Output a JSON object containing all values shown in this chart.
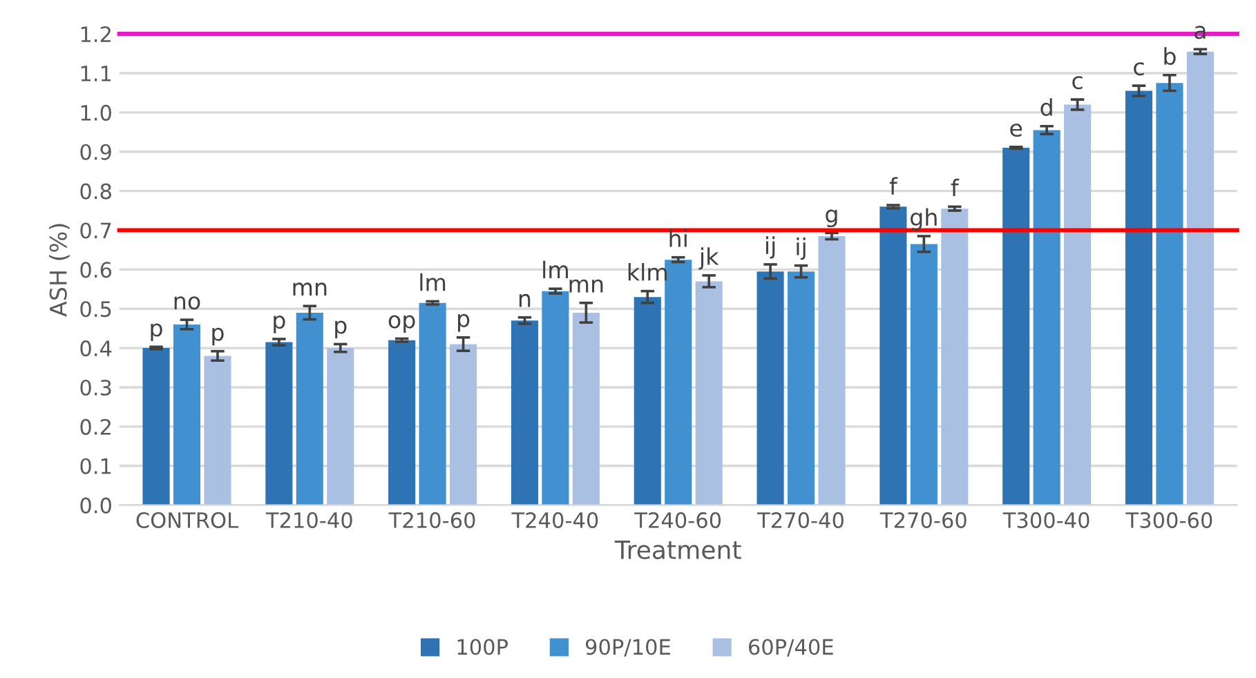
{
  "chart_data": {
    "type": "bar",
    "xlabel": "Treatment",
    "ylabel": "ASH (%)",
    "categories": [
      "CONTROL",
      "T210-40",
      "T210-60",
      "T240-40",
      "T240-60",
      "T270-40",
      "T270-60",
      "T300-40",
      "T300-60"
    ],
    "series": [
      {
        "name": "100P",
        "color": "#2e74b5",
        "values": [
          0.4,
          0.415,
          0.42,
          0.47,
          0.53,
          0.595,
          0.76,
          0.91,
          1.055
        ],
        "errors": [
          0.003,
          0.008,
          0.004,
          0.008,
          0.015,
          0.018,
          0.004,
          0.002,
          0.013
        ],
        "value_labels": [
          "p",
          "p",
          "op",
          "n",
          "klm",
          "ij",
          "f",
          "e",
          "c"
        ]
      },
      {
        "name": "90P/10E",
        "color": "#4190d0",
        "values": [
          0.46,
          0.49,
          0.515,
          0.545,
          0.625,
          0.595,
          0.665,
          0.955,
          1.075
        ],
        "errors": [
          0.012,
          0.017,
          0.004,
          0.006,
          0.006,
          0.015,
          0.02,
          0.01,
          0.02
        ],
        "value_labels": [
          "no",
          "mn",
          "lm",
          "lm",
          "hi",
          "ij",
          "gh",
          "d",
          "b"
        ]
      },
      {
        "name": "60P/40E",
        "color": "#a9c0e3",
        "values": [
          0.38,
          0.4,
          0.41,
          0.49,
          0.57,
          0.685,
          0.755,
          1.02,
          1.155
        ],
        "errors": [
          0.012,
          0.01,
          0.017,
          0.025,
          0.015,
          0.008,
          0.005,
          0.013,
          0.006
        ],
        "value_labels": [
          "p",
          "p",
          "p",
          "mn",
          "jk",
          "g",
          "f",
          "c",
          "a"
        ]
      }
    ],
    "ylim": [
      0,
      1.2
    ],
    "yticks": [
      {
        "value": 0,
        "label": "0.0"
      },
      0.1,
      0.2,
      0.3,
      0.4,
      0.5,
      0.6,
      0.7,
      0.8,
      0.9,
      {
        "value": 1.0,
        "label": "1.0"
      },
      1.1,
      1.2
    ],
    "grid": "y",
    "legend": "bottom",
    "ref_lines": [
      {
        "axis": "y",
        "value": 0.7,
        "label": null,
        "color": "#ff0000"
      },
      {
        "axis": "y",
        "value": 1.2,
        "label": null,
        "color": "#e619c8"
      }
    ]
  }
}
